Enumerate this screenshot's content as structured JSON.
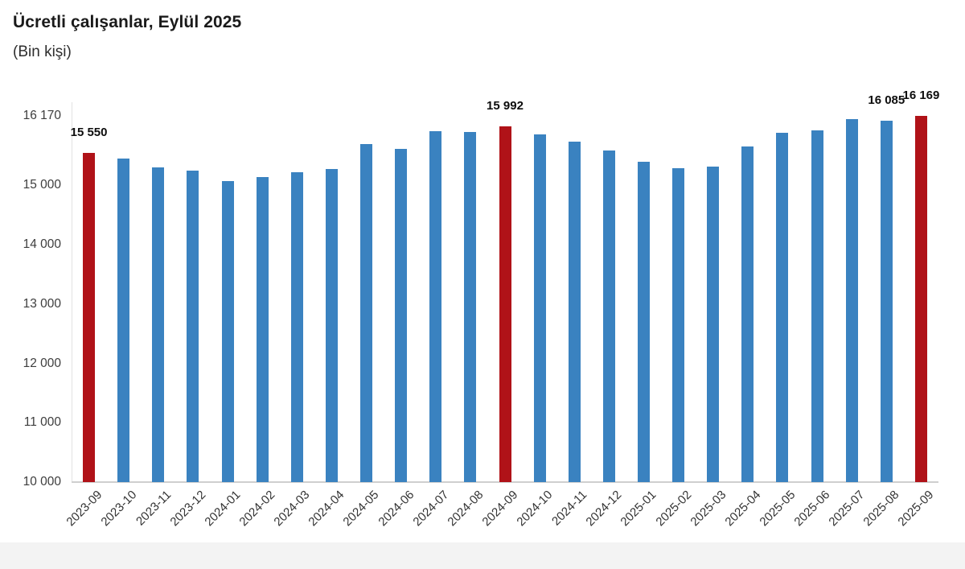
{
  "header": {
    "title": "Ücretli çalışanlar, Eylül 2025",
    "subtitle": "(Bin kişi)"
  },
  "chart_data": {
    "type": "bar",
    "title": "Ücretli çalışanlar, Eylül 2025",
    "subtitle": "(Bin kişi)",
    "unit": "Bin kişi",
    "categories": [
      "2023-09",
      "2023-10",
      "2023-11",
      "2023-12",
      "2024-01",
      "2024-02",
      "2024-03",
      "2024-04",
      "2024-05",
      "2024-06",
      "2024-07",
      "2024-08",
      "2024-09",
      "2024-10",
      "2024-11",
      "2024-12",
      "2025-01",
      "2025-02",
      "2025-03",
      "2025-04",
      "2025-05",
      "2025-06",
      "2025-07",
      "2025-08",
      "2025-09"
    ],
    "values": [
      15550,
      15450,
      15300,
      15250,
      15070,
      15140,
      15220,
      15280,
      15700,
      15610,
      15910,
      15900,
      15992,
      15860,
      15740,
      15580,
      15400,
      15290,
      15310,
      15650,
      15890,
      15930,
      16110,
      16085,
      16169
    ],
    "highlighted_categories": [
      "2023-09",
      "2024-09",
      "2025-09"
    ],
    "data_labels": [
      {
        "category": "2023-09",
        "text": "15 550"
      },
      {
        "category": "2024-09",
        "text": "15 992"
      },
      {
        "category": "2025-08",
        "text": "16 085"
      },
      {
        "category": "2025-09",
        "text": "16 169"
      }
    ],
    "yticks": [
      {
        "value": 16170,
        "label": "16 170"
      },
      {
        "value": 15000,
        "label": "15 000"
      },
      {
        "value": 14000,
        "label": "14 000"
      },
      {
        "value": 13000,
        "label": "13 000"
      },
      {
        "value": 12000,
        "label": "12 000"
      },
      {
        "value": 11000,
        "label": "11 000"
      },
      {
        "value": 10000,
        "label": "10 000"
      }
    ],
    "ylim": [
      10000,
      16400
    ],
    "grid": false,
    "legend": false,
    "xlabel": "",
    "ylabel": "",
    "colors": {
      "bar": "#3a82c0",
      "highlight": "#b01218",
      "axis_line": "#cfcfcf",
      "tick_text": "#3d3d3d",
      "data_label_text": "#0d0d0d"
    }
  }
}
